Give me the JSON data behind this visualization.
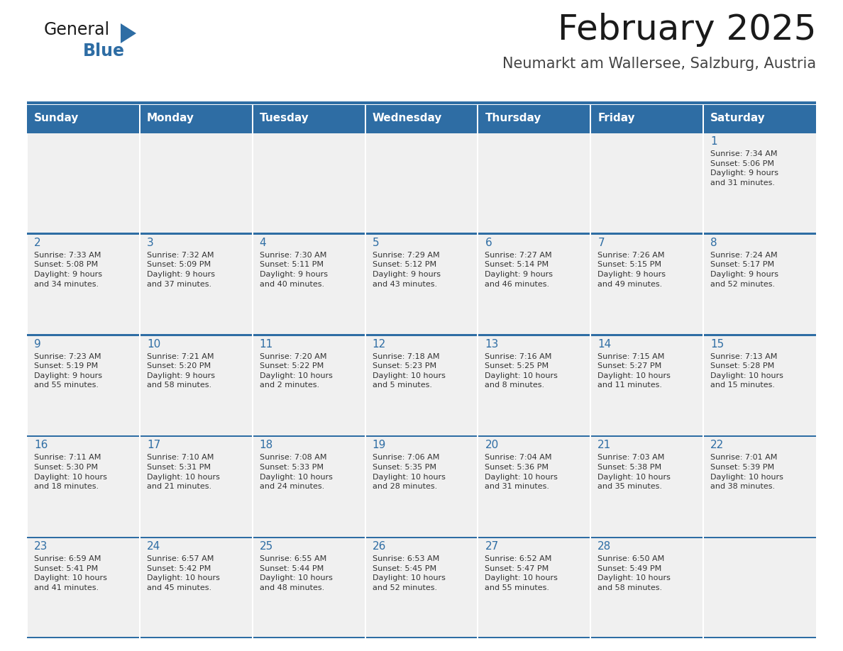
{
  "title": "February 2025",
  "subtitle": "Neumarkt am Wallersee, Salzburg, Austria",
  "header_bg": "#2E6DA4",
  "header_text": "#FFFFFF",
  "cell_bg": "#F0F0F0",
  "cell_bg_white": "#FFFFFF",
  "border_color": "#2E6DA4",
  "day_number_color": "#2E6DA4",
  "cell_text_color": "#333333",
  "days_of_week": [
    "Sunday",
    "Monday",
    "Tuesday",
    "Wednesday",
    "Thursday",
    "Friday",
    "Saturday"
  ],
  "calendar": [
    [
      {
        "day": null,
        "info": null
      },
      {
        "day": null,
        "info": null
      },
      {
        "day": null,
        "info": null
      },
      {
        "day": null,
        "info": null
      },
      {
        "day": null,
        "info": null
      },
      {
        "day": null,
        "info": null
      },
      {
        "day": 1,
        "info": "Sunrise: 7:34 AM\nSunset: 5:06 PM\nDaylight: 9 hours\nand 31 minutes."
      }
    ],
    [
      {
        "day": 2,
        "info": "Sunrise: 7:33 AM\nSunset: 5:08 PM\nDaylight: 9 hours\nand 34 minutes."
      },
      {
        "day": 3,
        "info": "Sunrise: 7:32 AM\nSunset: 5:09 PM\nDaylight: 9 hours\nand 37 minutes."
      },
      {
        "day": 4,
        "info": "Sunrise: 7:30 AM\nSunset: 5:11 PM\nDaylight: 9 hours\nand 40 minutes."
      },
      {
        "day": 5,
        "info": "Sunrise: 7:29 AM\nSunset: 5:12 PM\nDaylight: 9 hours\nand 43 minutes."
      },
      {
        "day": 6,
        "info": "Sunrise: 7:27 AM\nSunset: 5:14 PM\nDaylight: 9 hours\nand 46 minutes."
      },
      {
        "day": 7,
        "info": "Sunrise: 7:26 AM\nSunset: 5:15 PM\nDaylight: 9 hours\nand 49 minutes."
      },
      {
        "day": 8,
        "info": "Sunrise: 7:24 AM\nSunset: 5:17 PM\nDaylight: 9 hours\nand 52 minutes."
      }
    ],
    [
      {
        "day": 9,
        "info": "Sunrise: 7:23 AM\nSunset: 5:19 PM\nDaylight: 9 hours\nand 55 minutes."
      },
      {
        "day": 10,
        "info": "Sunrise: 7:21 AM\nSunset: 5:20 PM\nDaylight: 9 hours\nand 58 minutes."
      },
      {
        "day": 11,
        "info": "Sunrise: 7:20 AM\nSunset: 5:22 PM\nDaylight: 10 hours\nand 2 minutes."
      },
      {
        "day": 12,
        "info": "Sunrise: 7:18 AM\nSunset: 5:23 PM\nDaylight: 10 hours\nand 5 minutes."
      },
      {
        "day": 13,
        "info": "Sunrise: 7:16 AM\nSunset: 5:25 PM\nDaylight: 10 hours\nand 8 minutes."
      },
      {
        "day": 14,
        "info": "Sunrise: 7:15 AM\nSunset: 5:27 PM\nDaylight: 10 hours\nand 11 minutes."
      },
      {
        "day": 15,
        "info": "Sunrise: 7:13 AM\nSunset: 5:28 PM\nDaylight: 10 hours\nand 15 minutes."
      }
    ],
    [
      {
        "day": 16,
        "info": "Sunrise: 7:11 AM\nSunset: 5:30 PM\nDaylight: 10 hours\nand 18 minutes."
      },
      {
        "day": 17,
        "info": "Sunrise: 7:10 AM\nSunset: 5:31 PM\nDaylight: 10 hours\nand 21 minutes."
      },
      {
        "day": 18,
        "info": "Sunrise: 7:08 AM\nSunset: 5:33 PM\nDaylight: 10 hours\nand 24 minutes."
      },
      {
        "day": 19,
        "info": "Sunrise: 7:06 AM\nSunset: 5:35 PM\nDaylight: 10 hours\nand 28 minutes."
      },
      {
        "day": 20,
        "info": "Sunrise: 7:04 AM\nSunset: 5:36 PM\nDaylight: 10 hours\nand 31 minutes."
      },
      {
        "day": 21,
        "info": "Sunrise: 7:03 AM\nSunset: 5:38 PM\nDaylight: 10 hours\nand 35 minutes."
      },
      {
        "day": 22,
        "info": "Sunrise: 7:01 AM\nSunset: 5:39 PM\nDaylight: 10 hours\nand 38 minutes."
      }
    ],
    [
      {
        "day": 23,
        "info": "Sunrise: 6:59 AM\nSunset: 5:41 PM\nDaylight: 10 hours\nand 41 minutes."
      },
      {
        "day": 24,
        "info": "Sunrise: 6:57 AM\nSunset: 5:42 PM\nDaylight: 10 hours\nand 45 minutes."
      },
      {
        "day": 25,
        "info": "Sunrise: 6:55 AM\nSunset: 5:44 PM\nDaylight: 10 hours\nand 48 minutes."
      },
      {
        "day": 26,
        "info": "Sunrise: 6:53 AM\nSunset: 5:45 PM\nDaylight: 10 hours\nand 52 minutes."
      },
      {
        "day": 27,
        "info": "Sunrise: 6:52 AM\nSunset: 5:47 PM\nDaylight: 10 hours\nand 55 minutes."
      },
      {
        "day": 28,
        "info": "Sunrise: 6:50 AM\nSunset: 5:49 PM\nDaylight: 10 hours\nand 58 minutes."
      },
      {
        "day": null,
        "info": null
      }
    ]
  ],
  "logo_text1": "General",
  "logo_text2": "Blue",
  "logo_color1": "#1a1a1a",
  "logo_color2": "#2E6DA4",
  "logo_triangle_color": "#2E6DA4",
  "title_fontsize": 36,
  "subtitle_fontsize": 15,
  "header_fontsize": 11,
  "day_num_fontsize": 11,
  "cell_text_fontsize": 8
}
